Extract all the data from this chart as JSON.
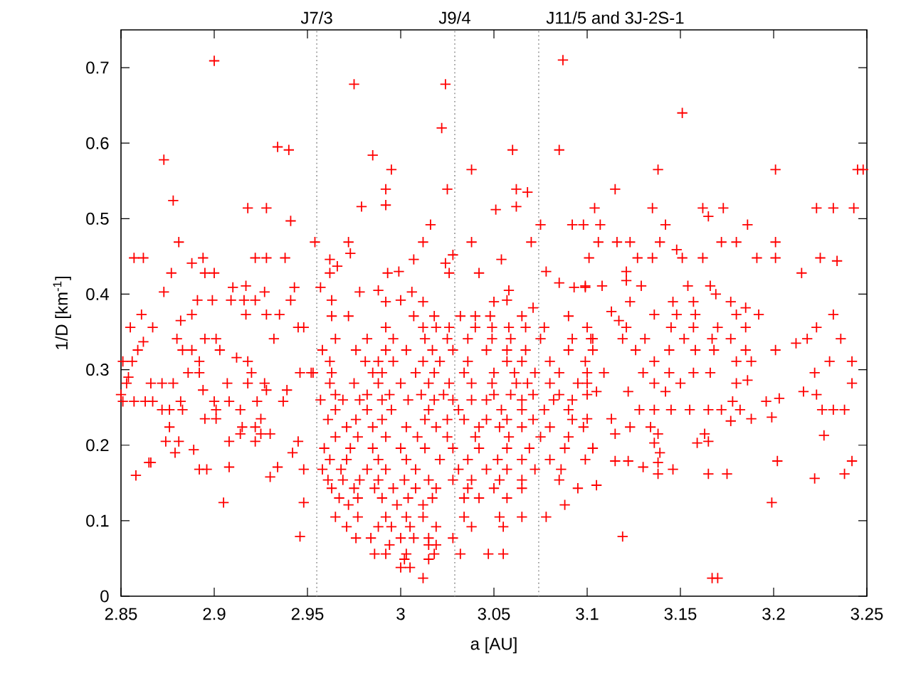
{
  "chart_data": {
    "type": "scatter",
    "xlabel": "a [AU]",
    "ylabel": "1/D [km$^{-1}$]",
    "xlim": [
      2.85,
      3.25
    ],
    "ylim": [
      0,
      0.75
    ],
    "xticks": [
      2.85,
      2.9,
      2.95,
      3,
      3.05,
      3.1,
      3.15,
      3.2,
      3.25
    ],
    "yticks": [
      0,
      0.1,
      0.2,
      0.3,
      0.4,
      0.5,
      0.6,
      0.7
    ],
    "grid": false,
    "marker": "cross",
    "ref_lines": [
      {
        "axis": "x",
        "value": 2.955,
        "label": "J7/3",
        "color": "#a0a0a0",
        "line_style": "dotted"
      },
      {
        "axis": "x",
        "value": 3.029,
        "label": "J9/4",
        "color": "#a0a0a0",
        "line_style": "dotted"
      },
      {
        "axis": "x",
        "value": 3.074,
        "label": "J11/5 and 3J-2S-1",
        "color": "#a0a0a0",
        "line_style": "dotted"
      }
    ],
    "series": [
      {
        "color": "#ff0000",
        "x": [
          2.9,
          2.975,
          2.873,
          2.934,
          2.94,
          2.878,
          2.918,
          2.928,
          2.941,
          2.954,
          2.881,
          2.857,
          2.862,
          2.894,
          2.922,
          2.928,
          2.938,
          2.877,
          2.888,
          2.895,
          2.9,
          2.873,
          2.91,
          2.917,
          2.927,
          2.943,
          2.891,
          2.899,
          2.909,
          2.916,
          2.922,
          2.941,
          2.861,
          2.888,
          2.917,
          2.928,
          2.935,
          2.855,
          2.867,
          2.882,
          2.945,
          2.948,
          2.862,
          2.88,
          2.895,
          2.901,
          2.932,
          2.859,
          2.883,
          2.888,
          2.903,
          2.912,
          2.918,
          2.892,
          2.851,
          2.856,
          2.886,
          2.892,
          2.92,
          2.946,
          2.952,
          2.854,
          2.853,
          2.866,
          2.872,
          2.878,
          2.907,
          2.918,
          2.927,
          2.894,
          2.928,
          2.939,
          2.85,
          2.851,
          2.857,
          2.863,
          2.867,
          2.882,
          2.9,
          2.908,
          2.923,
          2.937,
          2.872,
          2.876,
          2.883,
          2.901,
          2.914,
          2.895,
          2.901,
          2.925,
          2.876,
          2.915,
          2.922,
          2.914,
          2.925,
          2.93,
          2.874,
          2.881,
          2.908,
          2.922,
          2.945,
          2.889,
          2.879,
          2.942,
          2.865,
          2.866,
          2.858,
          2.892,
          2.896,
          2.908,
          2.934,
          2.93,
          2.948,
          2.905,
          2.948,
          2.946,
          3.087,
          3.024,
          3.022,
          2.985,
          3.06,
          3.085,
          2.995,
          3.038,
          2.992,
          3.025,
          3.062,
          3.068,
          2.979,
          2.992,
          3.051,
          3.062,
          3.016,
          3.075,
          3.092,
          3.098,
          2.972,
          3.012,
          3.038,
          3.07,
          2.973,
          3.028,
          3.007,
          3.024,
          3.054,
          2.962,
          2.966,
          2.962,
          2.993,
          2.999,
          3.026,
          3.042,
          3.078,
          2.957,
          2.978,
          2.988,
          3.006,
          3.058,
          3.085,
          3.093,
          3.099,
          2.963,
          2.992,
          3.0,
          3.012,
          3.05,
          3.057,
          3.071,
          2.963,
          2.972,
          3.007,
          3.018,
          3.032,
          3.04,
          3.048,
          3.065,
          3.09,
          2.992,
          3.012,
          3.019,
          3.026,
          3.04,
          3.049,
          3.058,
          3.067,
          3.077,
          3.1,
          2.965,
          2.982,
          2.996,
          3.013,
          3.025,
          3.036,
          3.049,
          3.059,
          3.075,
          3.092,
          3.103,
          2.958,
          2.976,
          2.992,
          3.003,
          3.017,
          3.028,
          3.046,
          3.057,
          3.067,
          3.09,
          2.962,
          2.981,
          2.988,
          2.996,
          3.012,
          3.021,
          3.036,
          3.057,
          3.065,
          3.08,
          3.099,
          2.953,
          2.963,
          2.985,
          2.99,
          3.008,
          3.018,
          3.034,
          3.05,
          3.061,
          3.072,
          3.085,
          3.1,
          2.962,
          2.975,
          2.988,
          3.0,
          3.015,
          3.026,
          3.038,
          3.049,
          3.062,
          3.068,
          3.08,
          3.095,
          2.965,
          2.982,
          2.994,
          3.011,
          3.023,
          3.05,
          3.059,
          3.071,
          3.085,
          3.1,
          2.957,
          2.969,
          2.978,
          2.99,
          3.004,
          3.018,
          3.028,
          3.038,
          3.046,
          3.065,
          3.082,
          3.092,
          2.965,
          2.982,
          2.995,
          3.015,
          3.031,
          3.054,
          3.065,
          3.077,
          3.09,
          2.961,
          2.976,
          2.99,
          3.013,
          3.025,
          3.034,
          3.046,
          3.057,
          3.071,
          3.092,
          2.971,
          2.985,
          3.003,
          3.019,
          3.042,
          3.053,
          3.065,
          3.08,
          3.098,
          2.965,
          2.977,
          2.992,
          3.009,
          3.025,
          3.04,
          3.058,
          3.075,
          3.09,
          2.959,
          2.973,
          2.985,
          3.0,
          3.013,
          3.028,
          3.042,
          3.057,
          3.069,
          3.088,
          3.103,
          2.962,
          2.971,
          2.988,
          3.003,
          3.021,
          3.036,
          3.052,
          3.065,
          3.08,
          3.099,
          2.958,
          2.968,
          2.982,
          2.992,
          3.008,
          3.031,
          3.046,
          3.057,
          3.072,
          3.086,
          2.961,
          2.969,
          2.978,
          2.988,
          3.002,
          3.015,
          3.028,
          3.038,
          3.053,
          3.065,
          3.085,
          2.963,
          2.975,
          2.986,
          2.996,
          3.008,
          3.019,
          3.036,
          3.05,
          3.065,
          3.095,
          2.967,
          2.977,
          2.99,
          3.004,
          3.017,
          3.034,
          3.042,
          3.057,
          2.972,
          2.998,
          3.012,
          3.088,
          2.965,
          2.977,
          2.992,
          3.003,
          3.012,
          3.034,
          3.053,
          3.065,
          3.078,
          2.971,
          2.988,
          2.995,
          3.005,
          3.019,
          3.038,
          3.055,
          2.976,
          2.984,
          3.0,
          3.007,
          3.015,
          3.028,
          2.994,
          3.015,
          3.019,
          2.986,
          2.992,
          3.003,
          3.018,
          3.032,
          3.047,
          3.055,
          3.002,
          3.015,
          3.0,
          3.005,
          3.012,
          3.151,
          3.138,
          3.201,
          3.245,
          3.248,
          3.115,
          3.104,
          3.135,
          3.162,
          3.173,
          3.223,
          3.232,
          3.243,
          3.165,
          3.107,
          3.142,
          3.186,
          3.106,
          3.116,
          3.123,
          3.139,
          3.172,
          3.18,
          3.201,
          3.148,
          3.101,
          3.127,
          3.135,
          3.151,
          3.162,
          3.191,
          3.201,
          3.225,
          3.234,
          3.121,
          3.121,
          3.215,
          3.099,
          3.108,
          3.129,
          3.154,
          3.166,
          3.169,
          3.177,
          3.146,
          3.123,
          3.157,
          3.185,
          3.136,
          3.148,
          3.158,
          3.18,
          3.192,
          3.232,
          3.113,
          3.117,
          3.121,
          3.145,
          3.157,
          3.17,
          3.185,
          3.223,
          3.102,
          3.119,
          3.131,
          3.152,
          3.167,
          3.177,
          3.218,
          3.236,
          3.212,
          3.201,
          3.185,
          3.168,
          3.158,
          3.144,
          3.126,
          3.103,
          3.136,
          3.18,
          3.188,
          3.23,
          3.242,
          3.109,
          3.13,
          3.144,
          3.157,
          3.166,
          3.222,
          3.1,
          3.136,
          3.15,
          3.18,
          3.242,
          3.186,
          3.216,
          3.223,
          3.105,
          3.122,
          3.142,
          3.196,
          3.203,
          3.178,
          3.165,
          3.155,
          3.172,
          3.182,
          3.226,
          3.232,
          3.238,
          3.128,
          3.136,
          3.145,
          3.113,
          3.1,
          3.123,
          3.134,
          3.177,
          3.188,
          3.199,
          3.163,
          3.138,
          3.115,
          3.227,
          3.159,
          3.165,
          3.136,
          3.103,
          3.139,
          3.115,
          3.13,
          3.138,
          3.122,
          3.146,
          3.202,
          3.242,
          3.138,
          3.165,
          3.175,
          3.238,
          3.222,
          3.105,
          3.199,
          3.119,
          3.167,
          3.17
        ],
        "values": [
          0.709,
          0.678,
          0.578,
          0.595,
          0.591,
          0.524,
          0.514,
          0.514,
          0.497,
          0.469,
          0.469,
          0.448,
          0.448,
          0.448,
          0.448,
          0.448,
          0.448,
          0.428,
          0.441,
          0.428,
          0.428,
          0.403,
          0.409,
          0.411,
          0.403,
          0.409,
          0.392,
          0.392,
          0.392,
          0.392,
          0.392,
          0.392,
          0.373,
          0.373,
          0.373,
          0.373,
          0.373,
          0.356,
          0.356,
          0.365,
          0.356,
          0.356,
          0.337,
          0.341,
          0.341,
          0.341,
          0.341,
          0.326,
          0.326,
          0.326,
          0.326,
          0.316,
          0.311,
          0.311,
          0.311,
          0.311,
          0.296,
          0.296,
          0.296,
          0.296,
          0.296,
          0.29,
          0.282,
          0.282,
          0.282,
          0.282,
          0.282,
          0.282,
          0.282,
          0.273,
          0.273,
          0.273,
          0.267,
          0.258,
          0.258,
          0.258,
          0.258,
          0.258,
          0.258,
          0.258,
          0.258,
          0.258,
          0.247,
          0.247,
          0.247,
          0.247,
          0.247,
          0.235,
          0.235,
          0.235,
          0.224,
          0.224,
          0.224,
          0.215,
          0.215,
          0.215,
          0.205,
          0.205,
          0.205,
          0.205,
          0.205,
          0.194,
          0.19,
          0.19,
          0.177,
          0.177,
          0.16,
          0.168,
          0.168,
          0.171,
          0.171,
          0.158,
          0.168,
          0.124,
          0.124,
          0.079,
          0.71,
          0.678,
          0.62,
          0.584,
          0.591,
          0.591,
          0.565,
          0.565,
          0.539,
          0.539,
          0.539,
          0.535,
          0.516,
          0.518,
          0.512,
          0.516,
          0.492,
          0.492,
          0.492,
          0.492,
          0.469,
          0.469,
          0.469,
          0.469,
          0.454,
          0.452,
          0.446,
          0.441,
          0.446,
          0.446,
          0.437,
          0.428,
          0.428,
          0.43,
          0.428,
          0.428,
          0.43,
          0.409,
          0.403,
          0.405,
          0.403,
          0.405,
          0.415,
          0.409,
          0.409,
          0.392,
          0.39,
          0.392,
          0.39,
          0.39,
          0.392,
          0.382,
          0.371,
          0.371,
          0.371,
          0.371,
          0.371,
          0.371,
          0.371,
          0.371,
          0.371,
          0.356,
          0.356,
          0.356,
          0.356,
          0.356,
          0.356,
          0.356,
          0.356,
          0.356,
          0.356,
          0.341,
          0.341,
          0.341,
          0.341,
          0.341,
          0.341,
          0.341,
          0.341,
          0.341,
          0.341,
          0.341,
          0.326,
          0.326,
          0.326,
          0.326,
          0.326,
          0.326,
          0.326,
          0.326,
          0.326,
          0.326,
          0.311,
          0.311,
          0.311,
          0.311,
          0.311,
          0.311,
          0.311,
          0.311,
          0.311,
          0.311,
          0.311,
          0.296,
          0.296,
          0.296,
          0.296,
          0.296,
          0.296,
          0.296,
          0.296,
          0.296,
          0.296,
          0.296,
          0.296,
          0.282,
          0.282,
          0.282,
          0.282,
          0.282,
          0.282,
          0.282,
          0.282,
          0.282,
          0.282,
          0.282,
          0.282,
          0.267,
          0.267,
          0.267,
          0.267,
          0.267,
          0.267,
          0.267,
          0.267,
          0.267,
          0.267,
          0.26,
          0.26,
          0.26,
          0.26,
          0.26,
          0.26,
          0.26,
          0.26,
          0.26,
          0.26,
          0.26,
          0.26,
          0.247,
          0.247,
          0.247,
          0.247,
          0.247,
          0.247,
          0.247,
          0.247,
          0.247,
          0.234,
          0.234,
          0.234,
          0.234,
          0.234,
          0.234,
          0.234,
          0.234,
          0.234,
          0.234,
          0.224,
          0.224,
          0.224,
          0.224,
          0.224,
          0.224,
          0.224,
          0.224,
          0.224,
          0.211,
          0.211,
          0.211,
          0.211,
          0.211,
          0.211,
          0.211,
          0.211,
          0.211,
          0.196,
          0.196,
          0.196,
          0.196,
          0.196,
          0.196,
          0.196,
          0.196,
          0.196,
          0.196,
          0.196,
          0.181,
          0.181,
          0.181,
          0.181,
          0.181,
          0.181,
          0.181,
          0.181,
          0.181,
          0.181,
          0.168,
          0.168,
          0.168,
          0.168,
          0.168,
          0.168,
          0.168,
          0.168,
          0.168,
          0.168,
          0.154,
          0.154,
          0.154,
          0.154,
          0.154,
          0.154,
          0.154,
          0.154,
          0.154,
          0.154,
          0.154,
          0.143,
          0.143,
          0.143,
          0.143,
          0.143,
          0.143,
          0.143,
          0.143,
          0.143,
          0.143,
          0.13,
          0.13,
          0.13,
          0.13,
          0.13,
          0.13,
          0.13,
          0.13,
          0.121,
          0.121,
          0.121,
          0.121,
          0.105,
          0.105,
          0.105,
          0.105,
          0.105,
          0.105,
          0.105,
          0.105,
          0.105,
          0.092,
          0.092,
          0.092,
          0.092,
          0.092,
          0.092,
          0.092,
          0.077,
          0.077,
          0.077,
          0.077,
          0.077,
          0.077,
          0.068,
          0.068,
          0.068,
          0.056,
          0.056,
          0.056,
          0.056,
          0.056,
          0.056,
          0.056,
          0.049,
          0.049,
          0.038,
          0.038,
          0.024,
          0.64,
          0.565,
          0.565,
          0.565,
          0.565,
          0.539,
          0.514,
          0.514,
          0.514,
          0.514,
          0.514,
          0.514,
          0.514,
          0.503,
          0.492,
          0.492,
          0.492,
          0.469,
          0.469,
          0.469,
          0.469,
          0.469,
          0.469,
          0.469,
          0.459,
          0.448,
          0.448,
          0.448,
          0.448,
          0.448,
          0.448,
          0.448,
          0.448,
          0.444,
          0.43,
          0.418,
          0.428,
          0.411,
          0.411,
          0.411,
          0.411,
          0.411,
          0.4,
          0.39,
          0.39,
          0.39,
          0.39,
          0.382,
          0.373,
          0.373,
          0.373,
          0.373,
          0.373,
          0.373,
          0.377,
          0.365,
          0.356,
          0.356,
          0.356,
          0.356,
          0.356,
          0.356,
          0.341,
          0.341,
          0.341,
          0.341,
          0.341,
          0.341,
          0.341,
          0.341,
          0.335,
          0.326,
          0.326,
          0.326,
          0.326,
          0.326,
          0.326,
          0.326,
          0.311,
          0.311,
          0.311,
          0.311,
          0.311,
          0.296,
          0.296,
          0.296,
          0.296,
          0.296,
          0.296,
          0.282,
          0.282,
          0.282,
          0.282,
          0.282,
          0.286,
          0.271,
          0.267,
          0.271,
          0.271,
          0.271,
          0.258,
          0.262,
          0.258,
          0.247,
          0.247,
          0.247,
          0.247,
          0.247,
          0.247,
          0.247,
          0.247,
          0.247,
          0.247,
          0.235,
          0.235,
          0.224,
          0.224,
          0.232,
          0.235,
          0.237,
          0.215,
          0.215,
          0.215,
          0.213,
          0.203,
          0.205,
          0.203,
          0.196,
          0.19,
          0.179,
          0.171,
          0.177,
          0.179,
          0.168,
          0.179,
          0.179,
          0.162,
          0.162,
          0.162,
          0.162,
          0.156,
          0.147,
          0.124,
          0.079,
          0.024,
          0.024
        ]
      }
    ]
  }
}
